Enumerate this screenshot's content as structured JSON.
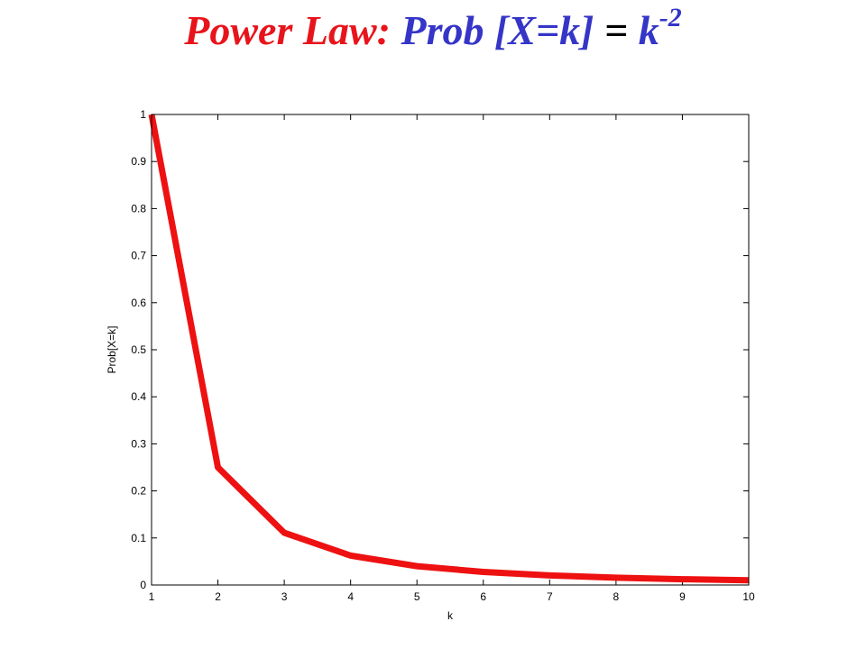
{
  "slide": {
    "title_prefix": "Power Law:",
    "title_expr": "Prob [X=k]",
    "title_equals": "=",
    "title_base": "k",
    "title_exponent": "-2",
    "colors": {
      "prefix": "#e8141c",
      "expr": "#3535c8",
      "equals": "#000000",
      "base": "#3535c8"
    }
  },
  "chart_data": {
    "type": "line",
    "title": "",
    "xlabel": "k",
    "ylabel": "Prob[X=k]",
    "xlim": [
      1,
      10
    ],
    "ylim": [
      0,
      1
    ],
    "xticks": [
      "1",
      "2",
      "3",
      "4",
      "5",
      "6",
      "7",
      "8",
      "9",
      "10"
    ],
    "yticks": [
      "0",
      "0.1",
      "0.2",
      "0.3",
      "0.4",
      "0.5",
      "0.6",
      "0.7",
      "0.8",
      "0.9",
      "1"
    ],
    "grid": false,
    "legend": "none",
    "series": [
      {
        "color": "#ee1111",
        "x": [
          1,
          2,
          3,
          4,
          5,
          6,
          7,
          8,
          9,
          10
        ],
        "y": [
          1,
          0.25,
          0.111,
          0.0625,
          0.04,
          0.0278,
          0.0204,
          0.0156,
          0.0123,
          0.01
        ]
      }
    ]
  }
}
